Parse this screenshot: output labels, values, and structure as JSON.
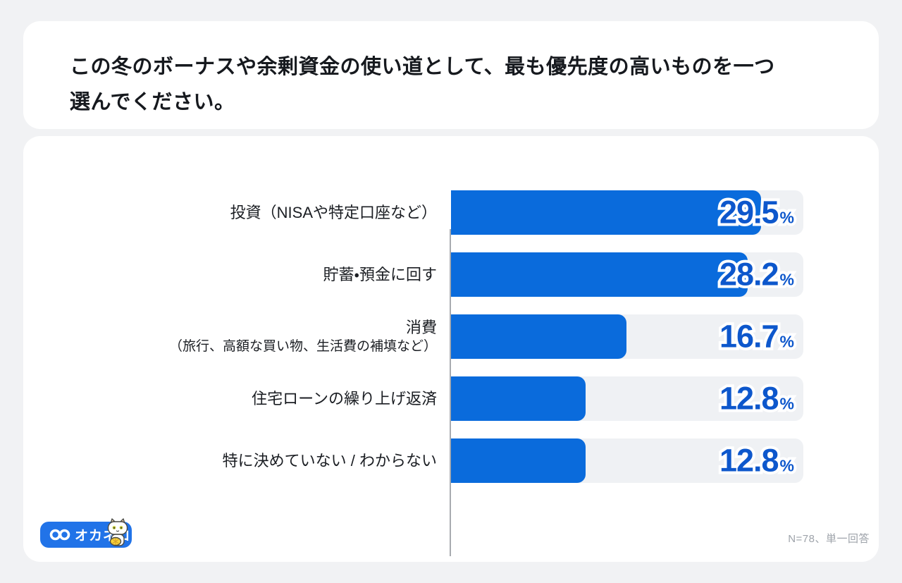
{
  "page": {
    "background": "#F1F2F4",
    "card_color": "#FFFFFF"
  },
  "title_card": {
    "title": "この冬のボーナスや余剰資金の使い道として、最も優先度の高いものを一つ\n選んでください。"
  },
  "chart_data": {
    "type": "bar",
    "orientation": "horizontal",
    "title": "この冬のボーナスや余剰資金の使い道として、最も優先度の高いものを一つ選んでください。",
    "categories": [
      "投資（NISAや特定口座など）",
      "貯蓄・預金に回す",
      "消費（旅行、高額な買い物、生活費の補填など）",
      "住宅ローンの繰り上げ返済",
      "特に決めていない / わからない"
    ],
    "values": [
      29.5,
      28.2,
      16.7,
      12.8,
      12.8
    ],
    "unit": "%",
    "xlim": [
      0,
      33.5
    ],
    "grid": false,
    "legend": "none",
    "annotation": "N=78、単一回答",
    "bar_color": "#0A6BDC",
    "track_color": "#EFF1F4",
    "value_color": "#0D57CC",
    "rows": [
      {
        "label": "投資（NISAや特定口座など）",
        "sublabel": "",
        "value": 29.5,
        "value_label": "29.5",
        "unit": "%"
      },
      {
        "label": "貯蓄・預金に回す",
        "sublabel": "",
        "value": 28.2,
        "value_label": "28.2",
        "unit": "%"
      },
      {
        "label": "消費",
        "sublabel": "（旅行、高額な買い物、生活費の補填など）",
        "value": 16.7,
        "value_label": "16.7",
        "unit": "%"
      },
      {
        "label": "住宅ローンの繰り上げ返済",
        "sublabel": "",
        "value": 12.8,
        "value_label": "12.8",
        "unit": "%"
      },
      {
        "label": "特に決めていない / わからない",
        "sublabel": "",
        "value": 12.8,
        "value_label": "12.8",
        "unit": "%"
      }
    ]
  },
  "footer": {
    "logo_text": "オカネコ",
    "note": "N=78、単一回答"
  }
}
